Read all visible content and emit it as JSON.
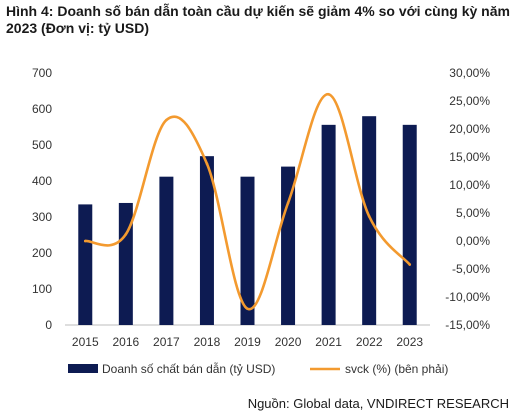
{
  "title": "Hình 4: Doanh số bán dẫn toàn cầu dự kiến sẽ giảm 4% so với cùng kỳ năm 2023 (Đơn vị: tỷ USD)",
  "source": "Nguồn: Global data, VNDIRECT RESEARCH",
  "chart_data": {
    "type": "bar",
    "categories": [
      "2015",
      "2016",
      "2017",
      "2018",
      "2019",
      "2020",
      "2021",
      "2022",
      "2023"
    ],
    "series": [
      {
        "name": "Doanh số chất bán dẫn (tỷ USD)",
        "type": "bar",
        "axis": "left",
        "values": [
          335,
          339,
          412,
          469,
          412,
          440,
          556,
          580,
          556
        ],
        "color": "#0d1b52"
      },
      {
        "name": "svck (%) (bên phải)",
        "type": "line",
        "axis": "right",
        "values": [
          0.0,
          1.2,
          21.6,
          13.8,
          -12.1,
          6.8,
          26.2,
          4.4,
          -4.2
        ],
        "color": "#f39a2f"
      }
    ],
    "y_left": {
      "ylim": [
        0,
        700
      ],
      "ticks": [
        "0",
        "100",
        "200",
        "300",
        "400",
        "500",
        "600",
        "700"
      ]
    },
    "y_right": {
      "ylim": [
        -15,
        30
      ],
      "ticks": [
        "-15,00%",
        "-10,00%",
        "-5,00%",
        "0,00%",
        "5,00%",
        "10,00%",
        "15,00%",
        "20,00%",
        "25,00%",
        "30,00%"
      ]
    },
    "grid": false,
    "legend_position": "bottom"
  }
}
